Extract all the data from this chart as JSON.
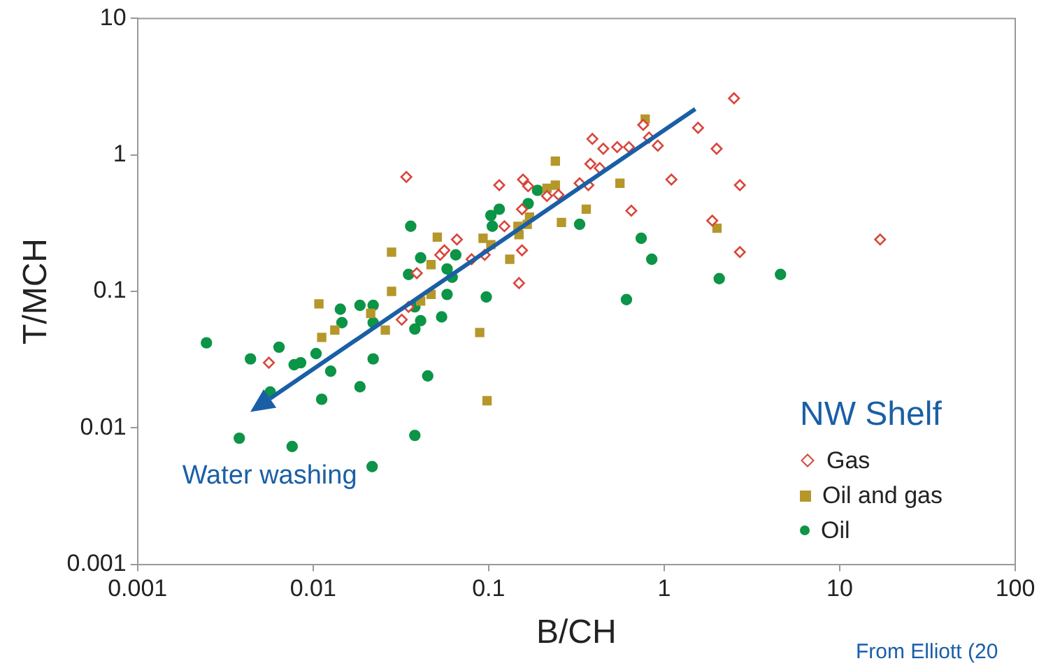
{
  "chart_data": {
    "type": "scatter",
    "xlabel": "B/CH",
    "ylabel": "T/MCH",
    "legend_title": "NW Shelf",
    "log": "xy",
    "grid": false,
    "legend": "bottom right",
    "xlim": [
      0.001,
      100
    ],
    "xticks": [
      0.001,
      0.01,
      0.1,
      1,
      10,
      100
    ],
    "ylim": [
      0.001,
      10
    ],
    "yticks": [
      0.001,
      0.01,
      0.1,
      1,
      10
    ],
    "annotations": [
      "Water washing",
      "From Elliott (20"
    ],
    "series": [
      {
        "name": "Gas",
        "color": "#d9453a",
        "marker": "diamond",
        "x": [
          0.0056,
          0.032,
          0.034,
          0.115,
          0.157,
          0.168,
          0.066,
          0.155,
          0.149,
          0.039,
          0.053,
          0.056,
          0.08,
          0.095,
          0.123,
          0.39,
          0.45,
          0.38,
          0.43,
          0.33,
          0.37,
          0.25,
          0.215,
          0.155,
          0.035,
          2.5,
          1.56,
          1.99,
          2.7,
          1.1,
          0.82,
          0.92,
          0.76,
          0.65,
          1.88,
          2.7,
          0.54,
          0.63,
          17
        ],
        "values": [
          0.03,
          0.062,
          0.69,
          0.6,
          0.66,
          0.59,
          0.24,
          0.2,
          0.115,
          0.136,
          0.185,
          0.2,
          0.172,
          0.185,
          0.3,
          1.31,
          1.11,
          0.86,
          0.8,
          0.62,
          0.6,
          0.51,
          0.5,
          0.4,
          0.077,
          2.6,
          1.58,
          1.11,
          0.6,
          0.66,
          1.34,
          1.17,
          1.66,
          0.39,
          0.33,
          0.194,
          1.14,
          1.14,
          0.24
        ]
      },
      {
        "name": "Oil and gas",
        "color": "#b5972a",
        "marker": "square",
        "x": [
          0.028,
          0.0108,
          0.0133,
          0.0112,
          0.0213,
          0.0258,
          0.028,
          0.051,
          0.047,
          0.047,
          0.041,
          0.093,
          0.103,
          0.132,
          0.147,
          0.149,
          0.166,
          0.171,
          0.215,
          0.24,
          0.24,
          0.26,
          0.36,
          0.089,
          0.78,
          0.56,
          2.0,
          0.098
        ],
        "values": [
          0.194,
          0.081,
          0.052,
          0.046,
          0.069,
          0.052,
          0.1,
          0.25,
          0.157,
          0.095,
          0.085,
          0.245,
          0.22,
          0.172,
          0.3,
          0.26,
          0.31,
          0.35,
          0.57,
          0.6,
          0.9,
          0.32,
          0.4,
          0.05,
          1.83,
          0.62,
          0.29,
          0.0158
        ]
      },
      {
        "name": "Oil",
        "color": "#0c9447",
        "marker": "circle",
        "x": [
          0.00247,
          0.0044,
          0.0064,
          0.0078,
          0.0085,
          0.0104,
          0.0126,
          0.0057,
          0.0112,
          0.0185,
          0.022,
          0.0038,
          0.0076,
          0.0217,
          0.0143,
          0.0146,
          0.0185,
          0.022,
          0.022,
          0.036,
          0.041,
          0.035,
          0.038,
          0.058,
          0.062,
          0.065,
          0.058,
          0.097,
          0.054,
          0.041,
          0.038,
          0.045,
          0.038,
          0.103,
          0.115,
          0.105,
          0.168,
          0.19,
          0.33,
          0.74,
          0.85,
          0.61,
          2.06,
          4.6
        ],
        "values": [
          0.042,
          0.032,
          0.039,
          0.029,
          0.03,
          0.035,
          0.026,
          0.0183,
          0.0162,
          0.02,
          0.032,
          0.0084,
          0.0073,
          0.0052,
          0.074,
          0.059,
          0.079,
          0.079,
          0.059,
          0.3,
          0.176,
          0.133,
          0.077,
          0.146,
          0.127,
          0.185,
          0.095,
          0.091,
          0.065,
          0.061,
          0.053,
          0.024,
          0.0088,
          0.36,
          0.4,
          0.3,
          0.44,
          0.55,
          0.31,
          0.245,
          0.172,
          0.087,
          0.124,
          0.133
        ]
      }
    ]
  }
}
